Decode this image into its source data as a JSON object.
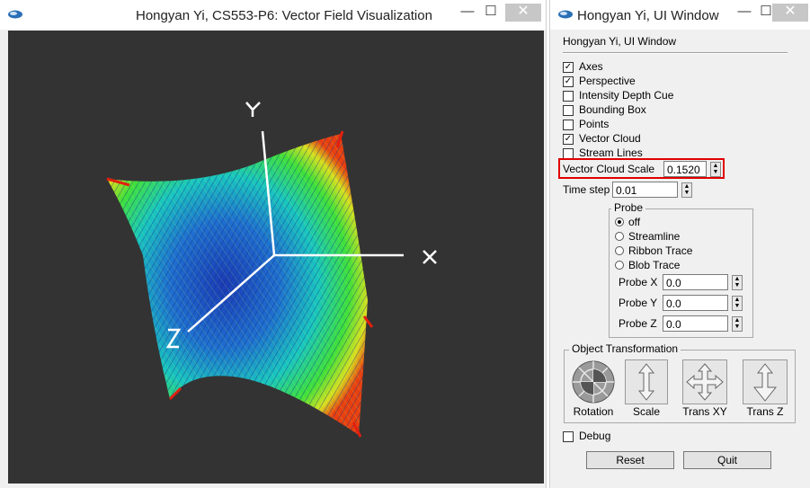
{
  "viz_window": {
    "title": "Hongyan Yi, CS553-P6: Vector Field Visualization",
    "axis_labels": {
      "x": "X",
      "y": "Y",
      "z": "Z"
    }
  },
  "ui_window": {
    "title": "Hongyan Yi, UI Window",
    "panel_heading": "Hongyan Yi, UI Window",
    "options": [
      {
        "label": "Axes",
        "checked": true
      },
      {
        "label": "Perspective",
        "checked": true
      },
      {
        "label": "Intensity Depth Cue",
        "checked": false
      },
      {
        "label": "Bounding Box",
        "checked": false
      },
      {
        "label": "Points",
        "checked": false
      },
      {
        "label": "Vector Cloud",
        "checked": true
      },
      {
        "label": "Stream Lines",
        "checked": false
      }
    ],
    "vector_cloud_scale": {
      "label": "Vector Cloud Scale",
      "value": "0.1520"
    },
    "time_step": {
      "label": "Time step",
      "value": "0.01"
    },
    "probe": {
      "title": "Probe",
      "modes": [
        {
          "label": "off",
          "selected": true
        },
        {
          "label": "Streamline",
          "selected": false
        },
        {
          "label": "Ribbon Trace",
          "selected": false
        },
        {
          "label": "Blob Trace",
          "selected": false
        }
      ],
      "x": {
        "label": "Probe X",
        "value": "0.0"
      },
      "y": {
        "label": "Probe Y",
        "value": "0.0"
      },
      "z": {
        "label": "Probe Z",
        "value": "0.0"
      }
    },
    "object_transformation": {
      "title": "Object Transformation",
      "rotation": "Rotation",
      "scale": "Scale",
      "trans_xy": "Trans XY",
      "trans_z": "Trans Z"
    },
    "debug": {
      "label": "Debug",
      "checked": false
    },
    "reset": "Reset",
    "quit": "Quit"
  },
  "window_controls": {
    "minimize": "—",
    "maximize": "☐",
    "close": "✕"
  }
}
